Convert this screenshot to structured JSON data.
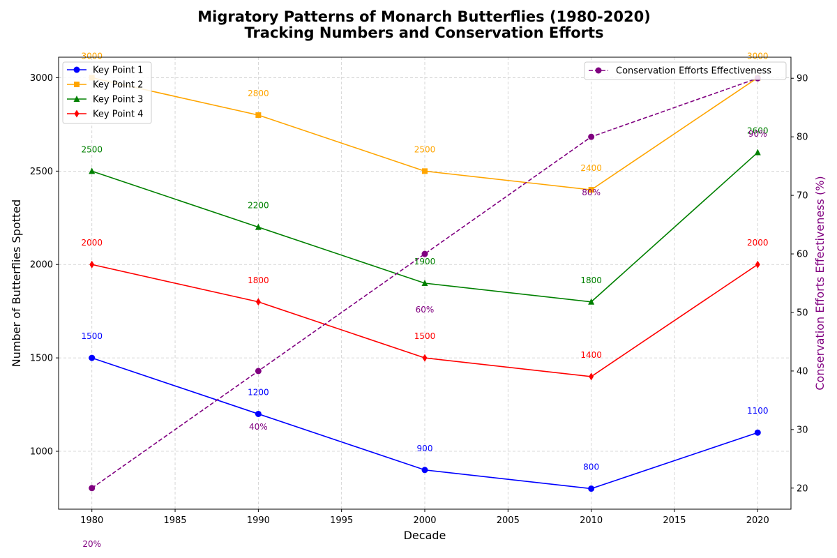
{
  "chart_data": {
    "type": "line",
    "title_line1": "Migratory Patterns of Monarch Butterflies (1980-2020)",
    "title_line2": "Tracking Numbers and Conservation Efforts",
    "xlabel": "Decade",
    "ylabel": "Number of Butterflies Spotted",
    "ylabel_right": "Conservation Efforts Effectiveness (%)",
    "x": [
      1980,
      1990,
      2000,
      2010,
      2020
    ],
    "xlim": [
      1978,
      2022
    ],
    "ylim": [
      690,
      3110
    ],
    "ylim_right": [
      16.4,
      93.6
    ],
    "x_ticks": [
      1980,
      1985,
      1990,
      1995,
      2000,
      2005,
      2010,
      2015,
      2020
    ],
    "y_ticks": [
      1000,
      1500,
      2000,
      2500,
      3000
    ],
    "y_ticks_right": [
      20,
      30,
      40,
      50,
      60,
      70,
      80,
      90
    ],
    "grid": true,
    "legend_left_position": "top-left",
    "legend_right_position": "top-right",
    "series": [
      {
        "name": "Key Point 1",
        "color": "#0000ff",
        "marker": "circle",
        "values": [
          1500,
          1200,
          900,
          800,
          1100
        ]
      },
      {
        "name": "Key Point 2",
        "color": "#ffa500",
        "marker": "square",
        "values": [
          3000,
          2800,
          2500,
          2400,
          3000
        ]
      },
      {
        "name": "Key Point 3",
        "color": "#008000",
        "marker": "triangle",
        "values": [
          2500,
          2200,
          1900,
          1800,
          2600
        ]
      },
      {
        "name": "Key Point 4",
        "color": "#ff0000",
        "marker": "diamond",
        "values": [
          2000,
          1800,
          1500,
          1400,
          2000
        ]
      }
    ],
    "secondary_series": {
      "name": "Conservation Efforts Effectiveness",
      "color": "#800080",
      "marker": "circle",
      "line_style": "dashed",
      "values": [
        20,
        40,
        60,
        80,
        90
      ],
      "labels": [
        "20%",
        "40%",
        "60%",
        "80%",
        "90%"
      ]
    }
  }
}
